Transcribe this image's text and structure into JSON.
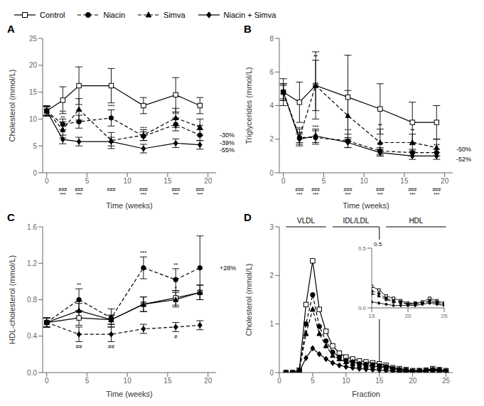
{
  "chart_data": [
    {
      "type": "line",
      "title": "A",
      "x_label": "Time (weeks)",
      "y_label": "Cholesterol (mmol/L)",
      "x": [
        0,
        2,
        4,
        8,
        12,
        16,
        19
      ],
      "xlim": [
        -0.5,
        21
      ],
      "ylim": [
        0,
        25
      ],
      "xticks": [
        0,
        5,
        10,
        15,
        20
      ],
      "yticks": [
        0,
        5,
        10,
        15,
        20,
        25
      ],
      "grid": false,
      "legend": "upper left",
      "series": [
        {
          "name": "Control",
          "color": "#000000",
          "marker": "open_square",
          "line_style": "solid",
          "values": [
            11.5,
            13.5,
            16.2,
            16.2,
            12.5,
            14.5,
            12.5
          ],
          "errors": [
            1.0,
            2.5,
            3.5,
            3.2,
            1.5,
            3.2,
            1.5
          ]
        },
        {
          "name": "Niacin",
          "color": "#000000",
          "marker": "circle",
          "line_style": "dashed",
          "values": [
            11.5,
            9.0,
            9.5,
            10.2,
            6.8,
            9.0,
            7.0
          ],
          "errors": [
            0.8,
            1.0,
            1.2,
            1.5,
            0.8,
            1.2,
            1.0
          ]
        },
        {
          "name": "Simva",
          "color": "#000000",
          "marker": "triangle",
          "line_style": "dashed",
          "values": [
            11.5,
            8.0,
            11.8,
            6.0,
            7.0,
            10.2,
            8.5
          ],
          "errors": [
            0.8,
            1.5,
            2.0,
            1.5,
            1.0,
            1.8,
            1.5
          ]
        },
        {
          "name": "Niacin + Simva",
          "color": "#000000",
          "marker": "diamond",
          "line_style": "solid",
          "values": [
            11.5,
            6.2,
            5.8,
            5.8,
            4.5,
            5.5,
            5.2
          ],
          "errors": [
            0.8,
            0.8,
            0.8,
            0.8,
            0.8,
            0.8,
            0.8
          ]
        }
      ],
      "annotations": [
        {
          "text": "###\n***",
          "x": 2,
          "side": "below_axis"
        },
        {
          "text": "###\n***",
          "x": 4,
          "side": "below_axis"
        },
        {
          "text": "###",
          "x": 8,
          "side": "below_axis"
        },
        {
          "text": "###\n***",
          "x": 12,
          "side": "below_axis"
        },
        {
          "text": "###\n***",
          "x": 16,
          "side": "below_axis"
        },
        {
          "text": "###\n***",
          "x": 19,
          "side": "below_axis"
        },
        {
          "text": "***",
          "x": 2,
          "series": "Niacin",
          "side": "above"
        },
        {
          "text": "***",
          "x": 4,
          "series": "Niacin",
          "side": "above"
        },
        {
          "text": "***",
          "x": 8,
          "series": "Niacin",
          "side": "above"
        },
        {
          "text": "***",
          "x": 12,
          "series": "Niacin",
          "side": "above"
        },
        {
          "text": "***",
          "x": 16,
          "series": "Niacin",
          "side": "above"
        },
        {
          "text": "***",
          "x": 19,
          "series": "Niacin",
          "side": "above"
        },
        {
          "text": "**",
          "x": 2,
          "series": "Simva",
          "side": "above"
        },
        {
          "text": "-30%",
          "y": 7.0,
          "side": "right"
        },
        {
          "text": "-39%",
          "y": 5.5,
          "side": "right"
        },
        {
          "text": "-55%",
          "y": 4.2,
          "side": "right"
        }
      ]
    },
    {
      "type": "line",
      "title": "B",
      "x_label": "Time (weeks)",
      "y_label": "Triglycerides (mmol/L)",
      "x": [
        0,
        2,
        4,
        8,
        12,
        16,
        19
      ],
      "xlim": [
        -0.5,
        21
      ],
      "ylim": [
        0,
        8
      ],
      "xticks": [
        0,
        5,
        10,
        15,
        20
      ],
      "yticks": [
        0,
        2,
        4,
        6,
        8
      ],
      "grid": false,
      "series": [
        {
          "name": "Control",
          "color": "#000000",
          "marker": "open_square",
          "line_style": "solid",
          "values": [
            4.8,
            4.2,
            5.2,
            4.5,
            3.8,
            3.0,
            3.0
          ],
          "errors": [
            0.8,
            1.2,
            2.0,
            2.5,
            1.5,
            1.2,
            1.0
          ]
        },
        {
          "name": "Niacin",
          "color": "#000000",
          "marker": "circle",
          "line_style": "dashed",
          "values": [
            4.8,
            2.1,
            2.1,
            1.9,
            1.3,
            1.2,
            1.2
          ],
          "errors": [
            0.5,
            0.3,
            0.4,
            0.4,
            0.2,
            0.2,
            0.2
          ]
        },
        {
          "name": "Simva",
          "color": "#000000",
          "marker": "triangle",
          "line_style": "dashed",
          "values": [
            4.8,
            2.1,
            5.2,
            3.4,
            1.8,
            1.8,
            1.5
          ],
          "errors": [
            0.5,
            0.5,
            1.5,
            1.5,
            0.8,
            0.5,
            0.5
          ]
        },
        {
          "name": "Niacin + Simva",
          "color": "#000000",
          "marker": "diamond",
          "line_style": "solid",
          "values": [
            4.8,
            2.0,
            2.2,
            1.8,
            1.2,
            1.0,
            1.0
          ],
          "errors": [
            0.4,
            0.3,
            0.4,
            0.3,
            0.2,
            0.2,
            0.2
          ]
        }
      ],
      "annotations": [
        {
          "text": "###\n***",
          "x": 2,
          "side": "below_axis"
        },
        {
          "text": "###\n***",
          "x": 4,
          "side": "below_axis"
        },
        {
          "text": "###\n***",
          "x": 8,
          "side": "below_axis"
        },
        {
          "text": "###\n***",
          "x": 12,
          "side": "below_axis"
        },
        {
          "text": "###\n***",
          "x": 16,
          "side": "below_axis"
        },
        {
          "text": "###\n***",
          "x": 19,
          "side": "below_axis"
        },
        {
          "text": "***",
          "x": 2,
          "series": "Niacin",
          "side": "above"
        },
        {
          "text": "***",
          "x": 4,
          "series": "Niacin",
          "side": "above"
        },
        {
          "text": "***",
          "x": 8,
          "series": "Niacin",
          "side": "above"
        },
        {
          "text": "***",
          "x": 12,
          "series": "Niacin",
          "side": "above"
        },
        {
          "text": "***",
          "x": 16,
          "series": "Niacin",
          "side": "above"
        },
        {
          "text": "***",
          "x": 19,
          "series": "Niacin",
          "side": "above"
        },
        {
          "text": "**",
          "x": 4,
          "series": "Simva",
          "side": "above"
        },
        {
          "text": "**",
          "x": 12,
          "series": "Simva",
          "side": "above"
        },
        {
          "text": "**",
          "x": 16,
          "series": "Simva",
          "side": "above"
        },
        {
          "text": "-50%",
          "y": 1.4,
          "side": "right"
        },
        {
          "text": "-52%",
          "y": 0.8,
          "side": "right"
        }
      ]
    },
    {
      "type": "line",
      "title": "C",
      "x_label": "Time (weeks)",
      "y_label": "HDL-cholesterol (mmol/L)",
      "x": [
        0,
        4,
        8,
        12,
        16,
        19
      ],
      "xlim": [
        -0.5,
        21
      ],
      "ylim": [
        0,
        1.6
      ],
      "xticks": [
        0,
        5,
        10,
        15,
        20
      ],
      "yticks": [
        {
          "value": 0,
          "label": "0.0"
        },
        0.4,
        0.8,
        1.2,
        1.6
      ],
      "grid": false,
      "series": [
        {
          "name": "Control",
          "color": "#000000",
          "marker": "open_square",
          "line_style": "solid",
          "values": [
            0.55,
            0.6,
            0.58,
            0.75,
            0.82,
            0.88
          ],
          "errors": [
            0.05,
            0.08,
            0.05,
            0.08,
            0.08,
            0.08
          ]
        },
        {
          "name": "Niacin",
          "color": "#000000",
          "marker": "circle",
          "line_style": "dashed",
          "values": [
            0.55,
            0.8,
            0.6,
            1.15,
            1.02,
            1.15
          ],
          "errors": [
            0.05,
            0.12,
            0.1,
            0.12,
            0.12,
            0.35
          ]
        },
        {
          "name": "Simva",
          "color": "#000000",
          "marker": "triangle",
          "line_style": "solid",
          "values": [
            0.55,
            0.68,
            0.58,
            0.75,
            0.8,
            0.88
          ],
          "errors": [
            0.05,
            0.08,
            0.05,
            0.08,
            0.08,
            0.08
          ]
        },
        {
          "name": "Niacin + Simva",
          "color": "#000000",
          "marker": "diamond",
          "line_style": "dashed",
          "values": [
            0.55,
            0.42,
            0.42,
            0.48,
            0.5,
            0.52
          ],
          "errors": [
            0.05,
            0.08,
            0.08,
            0.05,
            0.05,
            0.05
          ]
        }
      ],
      "annotations": [
        {
          "text": "##",
          "x": 4,
          "series": "Niacin + Simva",
          "side": "below"
        },
        {
          "text": "**",
          "x": 4,
          "series": "Niacin",
          "side": "above"
        },
        {
          "text": "##",
          "x": 8,
          "series": "Niacin + Simva",
          "side": "below"
        },
        {
          "text": "***",
          "x": 12,
          "series": "Niacin",
          "side": "above"
        },
        {
          "text": "#",
          "x": 16,
          "series": "Niacin + Simva",
          "side": "below"
        },
        {
          "text": "*",
          "x": 16,
          "series": "Simva",
          "side": "above"
        },
        {
          "text": "**",
          "x": 16,
          "series": "Niacin",
          "side": "above"
        },
        {
          "text": "+28%",
          "y": 1.15,
          "side": "right"
        }
      ]
    },
    {
      "type": "line",
      "title": "D",
      "x_label": "Fraction",
      "y_label": "Cholesterol (mmol/L)",
      "x": [
        1,
        2,
        3,
        4,
        5,
        6,
        7,
        8,
        9,
        10,
        11,
        12,
        13,
        14,
        15,
        16,
        17,
        18,
        19,
        20,
        21,
        22,
        23,
        24,
        25
      ],
      "xlim": [
        0,
        26
      ],
      "ylim": [
        0,
        3
      ],
      "xticks": [
        0,
        5,
        10,
        15,
        20,
        25
      ],
      "yticks": [
        0,
        1,
        2,
        3
      ],
      "grid": false,
      "series": [
        {
          "name": "Control",
          "color": "#000000",
          "marker": "open_square",
          "line_style": "solid",
          "values": [
            0.0,
            0.0,
            0.05,
            1.4,
            2.3,
            1.3,
            0.85,
            0.55,
            0.4,
            0.32,
            0.28,
            0.24,
            0.22,
            0.2,
            0.18,
            0.15,
            0.1,
            0.08,
            0.06,
            0.04,
            0.04,
            0.05,
            0.08,
            0.06,
            0.04
          ]
        },
        {
          "name": "Niacin",
          "color": "#000000",
          "marker": "circle",
          "line_style": "dashed",
          "values": [
            0.0,
            0.0,
            0.04,
            1.0,
            1.6,
            0.95,
            0.65,
            0.42,
            0.32,
            0.25,
            0.22,
            0.18,
            0.17,
            0.16,
            0.14,
            0.12,
            0.08,
            0.06,
            0.05,
            0.03,
            0.04,
            0.04,
            0.06,
            0.05,
            0.03
          ]
        },
        {
          "name": "Simva",
          "color": "#000000",
          "marker": "triangle",
          "line_style": "dashed",
          "values": [
            0.0,
            0.0,
            0.04,
            0.8,
            1.3,
            0.8,
            0.55,
            0.35,
            0.28,
            0.22,
            0.18,
            0.15,
            0.14,
            0.13,
            0.12,
            0.1,
            0.07,
            0.05,
            0.04,
            0.03,
            0.03,
            0.04,
            0.05,
            0.04,
            0.03
          ]
        },
        {
          "name": "Niacin + Simva",
          "color": "#000000",
          "marker": "diamond",
          "line_style": "solid",
          "values": [
            0.0,
            0.0,
            0.02,
            0.3,
            0.5,
            0.38,
            0.28,
            0.2,
            0.15,
            0.12,
            0.1,
            0.08,
            0.07,
            0.06,
            0.05,
            0.04,
            0.03,
            0.02,
            0.02,
            0.02,
            0.02,
            0.03,
            0.04,
            0.03,
            0.02
          ]
        }
      ],
      "regions": [
        {
          "text": "VLDL",
          "x": [
            1,
            7
          ]
        },
        {
          "text": "IDL/LDL",
          "x": [
            8,
            15
          ]
        },
        {
          "text": "HDL",
          "x": [
            16,
            25
          ]
        }
      ],
      "vlines": [
        15
      ],
      "inset": {
        "type": "line",
        "x": [
          15,
          16,
          17,
          18,
          19,
          20,
          21,
          22,
          23,
          24,
          25
        ],
        "xlim": [
          15,
          25
        ],
        "ylim": [
          0,
          0.5
        ],
        "xticks": [
          15,
          20,
          25
        ],
        "yticks": [
          {
            "value": 0,
            "label": "0.0"
          },
          0.5
        ],
        "grid": false,
        "series": [
          {
            "name": "Control",
            "color": "#000000",
            "marker": "open_square",
            "line_style": "solid",
            "values": [
              0.18,
              0.15,
              0.1,
              0.08,
              0.06,
              0.04,
              0.04,
              0.05,
              0.08,
              0.06,
              0.04
            ]
          },
          {
            "name": "Niacin",
            "color": "#000000",
            "marker": "circle",
            "line_style": "dashed",
            "values": [
              0.14,
              0.12,
              0.08,
              0.06,
              0.05,
              0.03,
              0.04,
              0.04,
              0.06,
              0.05,
              0.03
            ]
          },
          {
            "name": "Simva",
            "color": "#000000",
            "marker": "triangle",
            "line_style": "dashed",
            "values": [
              0.12,
              0.1,
              0.07,
              0.05,
              0.04,
              0.03,
              0.03,
              0.04,
              0.05,
              0.04,
              0.03
            ]
          },
          {
            "name": "Niacin + Simva",
            "color": "#000000",
            "marker": "diamond",
            "line_style": "solid",
            "values": [
              0.05,
              0.04,
              0.03,
              0.02,
              0.02,
              0.02,
              0.02,
              0.03,
              0.04,
              0.03,
              0.02
            ]
          }
        ],
        "annotations": [
          {
            "text": "0.5",
            "x": 15,
            "side": "top"
          }
        ]
      }
    }
  ]
}
